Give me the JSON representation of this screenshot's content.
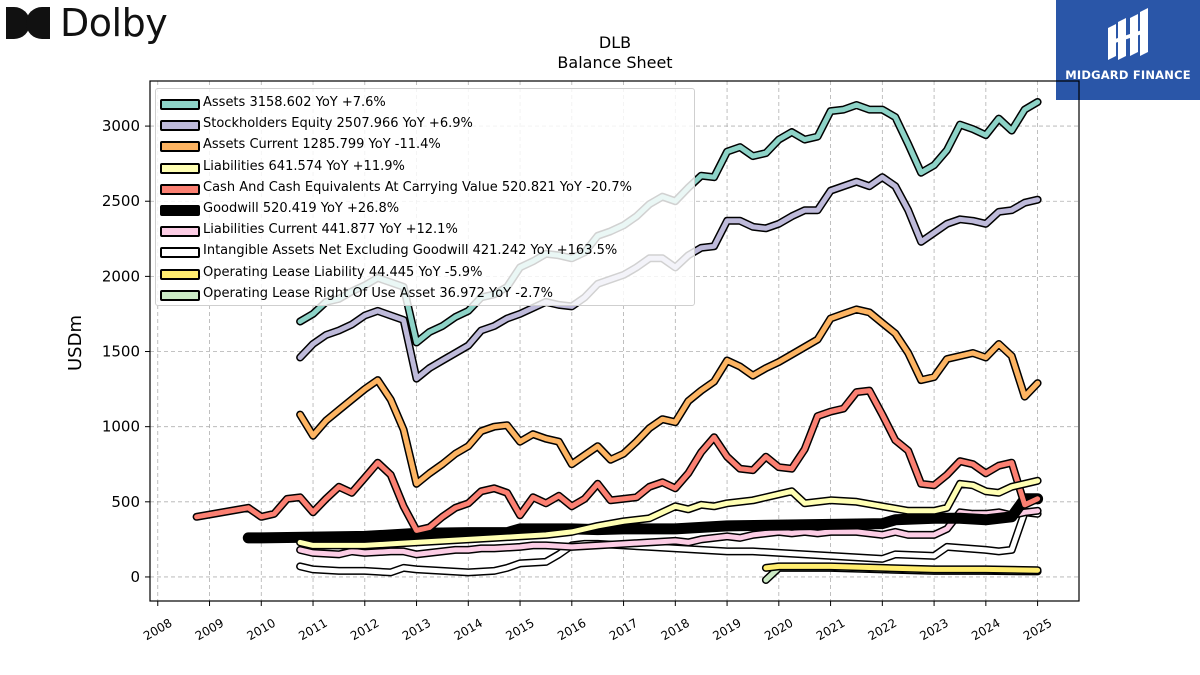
{
  "header": {
    "brand_left": "Dolby",
    "brand_right": "MIDGARD FINANCE",
    "title_line1": "DLB",
    "title_line2": "Balance  Sheet"
  },
  "colors": {
    "assets": "#8dd3c7",
    "equity": "#bebada",
    "assets_current": "#fdb462",
    "liabilities": "#ffffb3",
    "cash": "#fb8072",
    "goodwill": "#000000",
    "liabilities_current": "#fccde5",
    "intangibles": "#ffffff",
    "lease_liability": "#ffed6f",
    "lease_rou": "#ccebc5",
    "brand_blue": "#2a56a8"
  },
  "legend": [
    {
      "label": "Assets  3158.602 YoY +7.6%",
      "color": "#8dd3c7"
    },
    {
      "label": "Stockholders Equity  2507.966 YoY +6.9%",
      "color": "#bebada"
    },
    {
      "label": "Assets Current  1285.799 YoY -11.4%",
      "color": "#fdb462"
    },
    {
      "label": "Liabilities  641.574 YoY +11.9%",
      "color": "#ffffb3"
    },
    {
      "label": "Cash And Cash Equivalents At Carrying Value  520.821 YoY -20.7%",
      "color": "#fb8072"
    },
    {
      "label": "Goodwill  520.419 YoY +26.8%",
      "color": "#000000"
    },
    {
      "label": "Liabilities Current  441.877 YoY +12.1%",
      "color": "#fccde5"
    },
    {
      "label": "Intangible Assets Net Excluding Goodwill  421.242 YoY +163.5%",
      "color": "#ffffff"
    },
    {
      "label": "Operating Lease Liability  44.445 YoY -5.9%",
      "color": "#ffed6f"
    },
    {
      "label": "Operating Lease Right Of Use Asset  36.972 YoY -2.7%",
      "color": "#ccebc5"
    }
  ],
  "chart_data": {
    "type": "line",
    "title": "DLB",
    "subtitle": "Balance  Sheet",
    "xlabel": "",
    "ylabel": "USDm",
    "xlim": [
      2007.85,
      2025.8
    ],
    "ylim": [
      -160,
      3300
    ],
    "x_ticks": [
      "2008",
      "2009",
      "2010",
      "2011",
      "2012",
      "2013",
      "2014",
      "2015",
      "2016",
      "2017",
      "2018",
      "2019",
      "2020",
      "2021",
      "2022",
      "2023",
      "2024",
      "2025"
    ],
    "y_ticks": [
      0,
      500,
      1000,
      1500,
      2000,
      2500,
      3000
    ],
    "grid": true,
    "legend_position": "top-left",
    "series": [
      {
        "name": "Assets",
        "color": "#8dd3c7",
        "width": 5,
        "x": [
          2010.75,
          2011.0,
          2011.25,
          2011.5,
          2011.75,
          2012.0,
          2012.25,
          2012.5,
          2012.75,
          2013.0,
          2013.25,
          2013.5,
          2013.75,
          2014.0,
          2014.25,
          2014.5,
          2014.75,
          2015.0,
          2015.25,
          2015.5,
          2015.75,
          2016.0,
          2016.25,
          2016.5,
          2016.75,
          2017.0,
          2017.25,
          2017.5,
          2017.75,
          2018.0,
          2018.25,
          2018.5,
          2018.75,
          2019.0,
          2019.25,
          2019.5,
          2019.75,
          2020.0,
          2020.25,
          2020.5,
          2020.75,
          2021.0,
          2021.25,
          2021.5,
          2021.75,
          2022.0,
          2022.25,
          2022.5,
          2022.75,
          2023.0,
          2023.25,
          2023.5,
          2023.75,
          2024.0,
          2024.25,
          2024.5,
          2024.75,
          2025.0
        ],
        "y": [
          1700,
          1750,
          1830,
          1850,
          1900,
          1940,
          1990,
          1960,
          1930,
          1560,
          1630,
          1670,
          1730,
          1770,
          1860,
          1880,
          1930,
          2060,
          2100,
          2150,
          2140,
          2120,
          2160,
          2270,
          2300,
          2340,
          2400,
          2480,
          2530,
          2500,
          2590,
          2670,
          2660,
          2830,
          2860,
          2800,
          2820,
          2910,
          2960,
          2910,
          2930,
          3100,
          3110,
          3140,
          3110,
          3110,
          3060,
          2880,
          2690,
          2740,
          2840,
          3010,
          2980,
          2940,
          3050,
          2970,
          3110,
          3160
        ]
      },
      {
        "name": "Stockholders Equity",
        "color": "#bebada",
        "width": 5,
        "x": [
          2010.75,
          2011.0,
          2011.25,
          2011.5,
          2011.75,
          2012.0,
          2012.25,
          2012.5,
          2012.75,
          2013.0,
          2013.25,
          2013.5,
          2013.75,
          2014.0,
          2014.25,
          2014.5,
          2014.75,
          2015.0,
          2015.25,
          2015.5,
          2015.75,
          2016.0,
          2016.25,
          2016.5,
          2016.75,
          2017.0,
          2017.25,
          2017.5,
          2017.75,
          2018.0,
          2018.25,
          2018.5,
          2018.75,
          2019.0,
          2019.25,
          2019.5,
          2019.75,
          2020.0,
          2020.25,
          2020.5,
          2020.75,
          2021.0,
          2021.25,
          2021.5,
          2021.75,
          2022.0,
          2022.25,
          2022.5,
          2022.75,
          2023.0,
          2023.25,
          2023.5,
          2023.75,
          2024.0,
          2024.25,
          2024.5,
          2024.75,
          2025.0
        ],
        "y": [
          1460,
          1550,
          1610,
          1640,
          1680,
          1740,
          1770,
          1740,
          1710,
          1320,
          1390,
          1440,
          1490,
          1540,
          1640,
          1670,
          1720,
          1750,
          1790,
          1830,
          1810,
          1800,
          1860,
          1950,
          1980,
          2010,
          2060,
          2120,
          2120,
          2060,
          2140,
          2190,
          2200,
          2370,
          2370,
          2330,
          2320,
          2350,
          2400,
          2440,
          2440,
          2570,
          2600,
          2630,
          2600,
          2660,
          2600,
          2440,
          2230,
          2290,
          2350,
          2380,
          2370,
          2350,
          2430,
          2440,
          2490,
          2510
        ]
      },
      {
        "name": "Assets Current",
        "color": "#fdb462",
        "width": 5,
        "x": [
          2010.75,
          2011.0,
          2011.25,
          2011.5,
          2011.75,
          2012.0,
          2012.25,
          2012.5,
          2012.75,
          2013.0,
          2013.25,
          2013.5,
          2013.75,
          2014.0,
          2014.25,
          2014.5,
          2014.75,
          2015.0,
          2015.25,
          2015.5,
          2015.75,
          2016.0,
          2016.25,
          2016.5,
          2016.75,
          2017.0,
          2017.25,
          2017.5,
          2017.75,
          2018.0,
          2018.25,
          2018.5,
          2018.75,
          2019.0,
          2019.25,
          2019.5,
          2019.75,
          2020.0,
          2020.25,
          2020.5,
          2020.75,
          2021.0,
          2021.25,
          2021.5,
          2021.75,
          2022.0,
          2022.25,
          2022.5,
          2022.75,
          2023.0,
          2023.25,
          2023.5,
          2023.75,
          2024.0,
          2024.25,
          2024.5,
          2024.75,
          2025.0
        ],
        "y": [
          1080,
          940,
          1040,
          1110,
          1180,
          1250,
          1310,
          1180,
          980,
          620,
          690,
          750,
          820,
          870,
          970,
          1000,
          1010,
          900,
          950,
          920,
          900,
          750,
          810,
          870,
          780,
          820,
          900,
          990,
          1050,
          1030,
          1170,
          1240,
          1300,
          1440,
          1400,
          1340,
          1390,
          1430,
          1480,
          1530,
          1580,
          1720,
          1750,
          1780,
          1760,
          1690,
          1620,
          1490,
          1310,
          1330,
          1450,
          1470,
          1490,
          1460,
          1550,
          1470,
          1200,
          1290
        ]
      },
      {
        "name": "Liabilities",
        "color": "#ffffb3",
        "width": 5,
        "x": [
          2010.75,
          2011.0,
          2011.5,
          2012.0,
          2012.5,
          2013.0,
          2013.5,
          2014.0,
          2014.5,
          2015.0,
          2015.5,
          2016.0,
          2016.5,
          2017.0,
          2017.5,
          2018.0,
          2018.25,
          2018.5,
          2018.75,
          2019.0,
          2019.5,
          2020.0,
          2020.25,
          2020.5,
          2020.75,
          2021.0,
          2021.5,
          2022.0,
          2022.5,
          2022.75,
          2023.0,
          2023.25,
          2023.5,
          2023.75,
          2024.0,
          2024.25,
          2024.5,
          2024.75,
          2025.0
        ],
        "y": [
          230,
          210,
          210,
          210,
          220,
          230,
          240,
          250,
          260,
          270,
          280,
          300,
          340,
          370,
          390,
          470,
          450,
          480,
          470,
          490,
          510,
          550,
          570,
          490,
          500,
          510,
          500,
          470,
          440,
          440,
          440,
          460,
          620,
          610,
          570,
          560,
          600,
          620,
          640
        ]
      },
      {
        "name": "Cash And Cash Equivalents At Carrying Value",
        "color": "#fb8072",
        "width": 5,
        "x": [
          2008.75,
          2009.75,
          2010.0,
          2010.25,
          2010.5,
          2010.75,
          2011.0,
          2011.25,
          2011.5,
          2011.75,
          2012.0,
          2012.25,
          2012.5,
          2012.75,
          2013.0,
          2013.25,
          2013.5,
          2013.75,
          2014.0,
          2014.25,
          2014.5,
          2014.75,
          2015.0,
          2015.25,
          2015.5,
          2015.75,
          2016.0,
          2016.25,
          2016.5,
          2016.75,
          2017.0,
          2017.25,
          2017.5,
          2017.75,
          2018.0,
          2018.25,
          2018.5,
          2018.75,
          2019.0,
          2019.25,
          2019.5,
          2019.75,
          2020.0,
          2020.25,
          2020.5,
          2020.75,
          2021.0,
          2021.25,
          2021.5,
          2021.75,
          2022.0,
          2022.25,
          2022.5,
          2022.75,
          2023.0,
          2023.25,
          2023.5,
          2023.75,
          2024.0,
          2024.25,
          2024.5,
          2024.75,
          2025.0
        ],
        "y": [
          400,
          460,
          400,
          420,
          520,
          530,
          430,
          520,
          600,
          560,
          660,
          760,
          680,
          470,
          310,
          330,
          400,
          460,
          490,
          570,
          590,
          560,
          410,
          530,
          490,
          540,
          470,
          520,
          620,
          510,
          520,
          530,
          600,
          630,
          590,
          690,
          830,
          930,
          800,
          720,
          710,
          800,
          730,
          720,
          850,
          1070,
          1100,
          1120,
          1230,
          1240,
          1080,
          910,
          840,
          620,
          610,
          680,
          770,
          750,
          690,
          740,
          760,
          480,
          520
        ]
      },
      {
        "name": "Goodwill",
        "color": "#000000",
        "width": 8,
        "x": [
          2009.75,
          2010.0,
          2011.0,
          2012.0,
          2013.0,
          2014.0,
          2014.75,
          2015.0,
          2016.0,
          2016.5,
          2017.0,
          2018.0,
          2018.5,
          2019.0,
          2020.0,
          2021.0,
          2022.0,
          2022.25,
          2023.0,
          2023.5,
          2024.0,
          2024.5,
          2024.75,
          2025.0
        ],
        "y": [
          260,
          260,
          265,
          270,
          290,
          295,
          295,
          320,
          320,
          315,
          320,
          320,
          330,
          340,
          345,
          350,
          355,
          380,
          390,
          390,
          380,
          400,
          520,
          520
        ]
      },
      {
        "name": "Liabilities Current",
        "color": "#fccde5",
        "width": 5,
        "x": [
          2010.75,
          2011.0,
          2011.5,
          2011.75,
          2012.0,
          2012.5,
          2012.75,
          2013.0,
          2013.5,
          2013.75,
          2014.0,
          2014.25,
          2014.5,
          2015.0,
          2015.25,
          2015.5,
          2016.0,
          2016.5,
          2017.0,
          2017.5,
          2018.0,
          2018.25,
          2018.5,
          2019.0,
          2019.25,
          2019.5,
          2020.0,
          2020.25,
          2020.5,
          2020.75,
          2021.0,
          2021.5,
          2022.0,
          2022.25,
          2022.5,
          2023.0,
          2023.25,
          2023.5,
          2023.75,
          2024.0,
          2024.25,
          2024.5,
          2024.75,
          2025.0
        ],
        "y": [
          180,
          160,
          150,
          170,
          160,
          170,
          170,
          150,
          170,
          180,
          180,
          190,
          190,
          200,
          210,
          210,
          200,
          210,
          220,
          230,
          240,
          230,
          250,
          270,
          260,
          280,
          300,
          290,
          300,
          290,
          300,
          300,
          280,
          300,
          280,
          280,
          320,
          430,
          420,
          420,
          430,
          410,
          430,
          440
        ]
      },
      {
        "name": "Intangible Assets Net Excluding Goodwill",
        "color": "#ffffff",
        "width": 5,
        "x": [
          2010.75,
          2011.0,
          2011.5,
          2012.0,
          2012.5,
          2012.75,
          2013.0,
          2013.5,
          2014.0,
          2014.5,
          2014.75,
          2015.0,
          2015.5,
          2015.75,
          2016.0,
          2016.25,
          2016.5,
          2017.0,
          2017.5,
          2018.0,
          2018.5,
          2019.0,
          2019.5,
          2020.0,
          2021.0,
          2022.0,
          2022.25,
          2023.0,
          2023.25,
          2024.0,
          2024.25,
          2024.5,
          2024.75,
          2025.0
        ],
        "y": [
          70,
          50,
          40,
          40,
          30,
          60,
          50,
          40,
          30,
          40,
          60,
          90,
          100,
          150,
          210,
          220,
          220,
          210,
          200,
          190,
          180,
          170,
          170,
          160,
          140,
          120,
          150,
          140,
          200,
          180,
          170,
          180,
          430,
          420
        ]
      },
      {
        "name": "Operating Lease Liability",
        "color": "#ffed6f",
        "width": 5,
        "x": [
          2019.75,
          2020.0,
          2021.0,
          2022.0,
          2023.0,
          2024.0,
          2025.0
        ],
        "y": [
          60,
          70,
          70,
          60,
          50,
          50,
          45
        ]
      },
      {
        "name": "Operating Lease Right Of Use Asset",
        "color": "#ccebc5",
        "width": 5,
        "x": [
          2019.75,
          2020.0,
          2021.0,
          2022.0,
          2023.0,
          2024.0,
          2025.0
        ],
        "y": [
          -20,
          60,
          60,
          50,
          40,
          40,
          37
        ]
      }
    ]
  }
}
